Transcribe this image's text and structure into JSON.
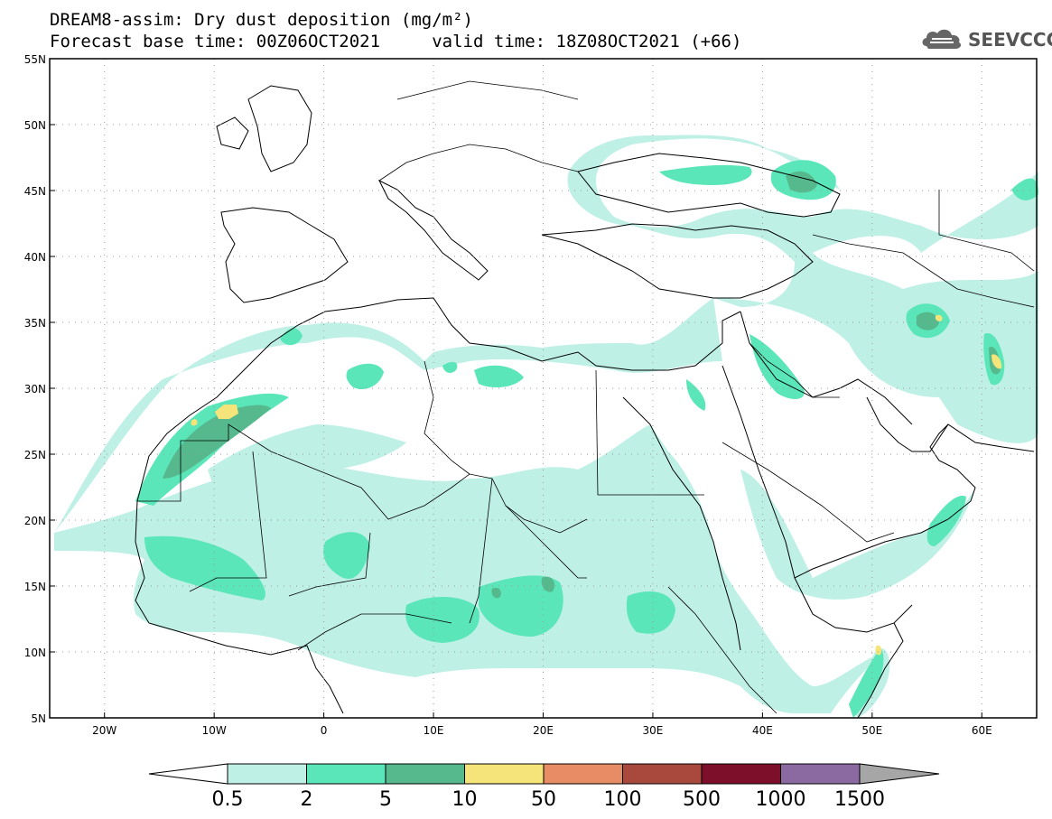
{
  "header": {
    "title_line1": "DREAM8-assim: Dry dust deposition (mg/m²)",
    "title_line2": "Forecast base time: 00Z06OCT2021     valid time: 18Z08OCT2021 (+66)",
    "logo_text": "SEEVCCC",
    "logo_icon": "cloud-logo-icon"
  },
  "map": {
    "lon_range": [
      -25,
      65
    ],
    "lat_range": [
      5,
      55
    ],
    "lat_ticks": [
      "55N",
      "50N",
      "45N",
      "40N",
      "35N",
      "30N",
      "25N",
      "20N",
      "15N",
      "10N",
      "5N"
    ],
    "lon_ticks": [
      "20W",
      "10W",
      "0",
      "10E",
      "20E",
      "30E",
      "40E",
      "50E",
      "60E"
    ],
    "grid": true,
    "background": "#ffffff"
  },
  "colorbar": {
    "labels": [
      "0.5",
      "2",
      "5",
      "10",
      "50",
      "100",
      "500",
      "1000",
      "1500"
    ],
    "colors": [
      "#bff0e6",
      "#5ae6b8",
      "#56b98e",
      "#f5e47a",
      "#e88c65",
      "#a9493d",
      "#7e0f2b",
      "#8a6aa0"
    ],
    "under_color": "#ffffff",
    "over_color": "#a6a6a6"
  },
  "legend_colors": {
    "light": "#bff0e6",
    "medium": "#5ae6b8",
    "dark": "#56b98e",
    "yellow": "#f5e47a",
    "border_line": "#000000"
  }
}
